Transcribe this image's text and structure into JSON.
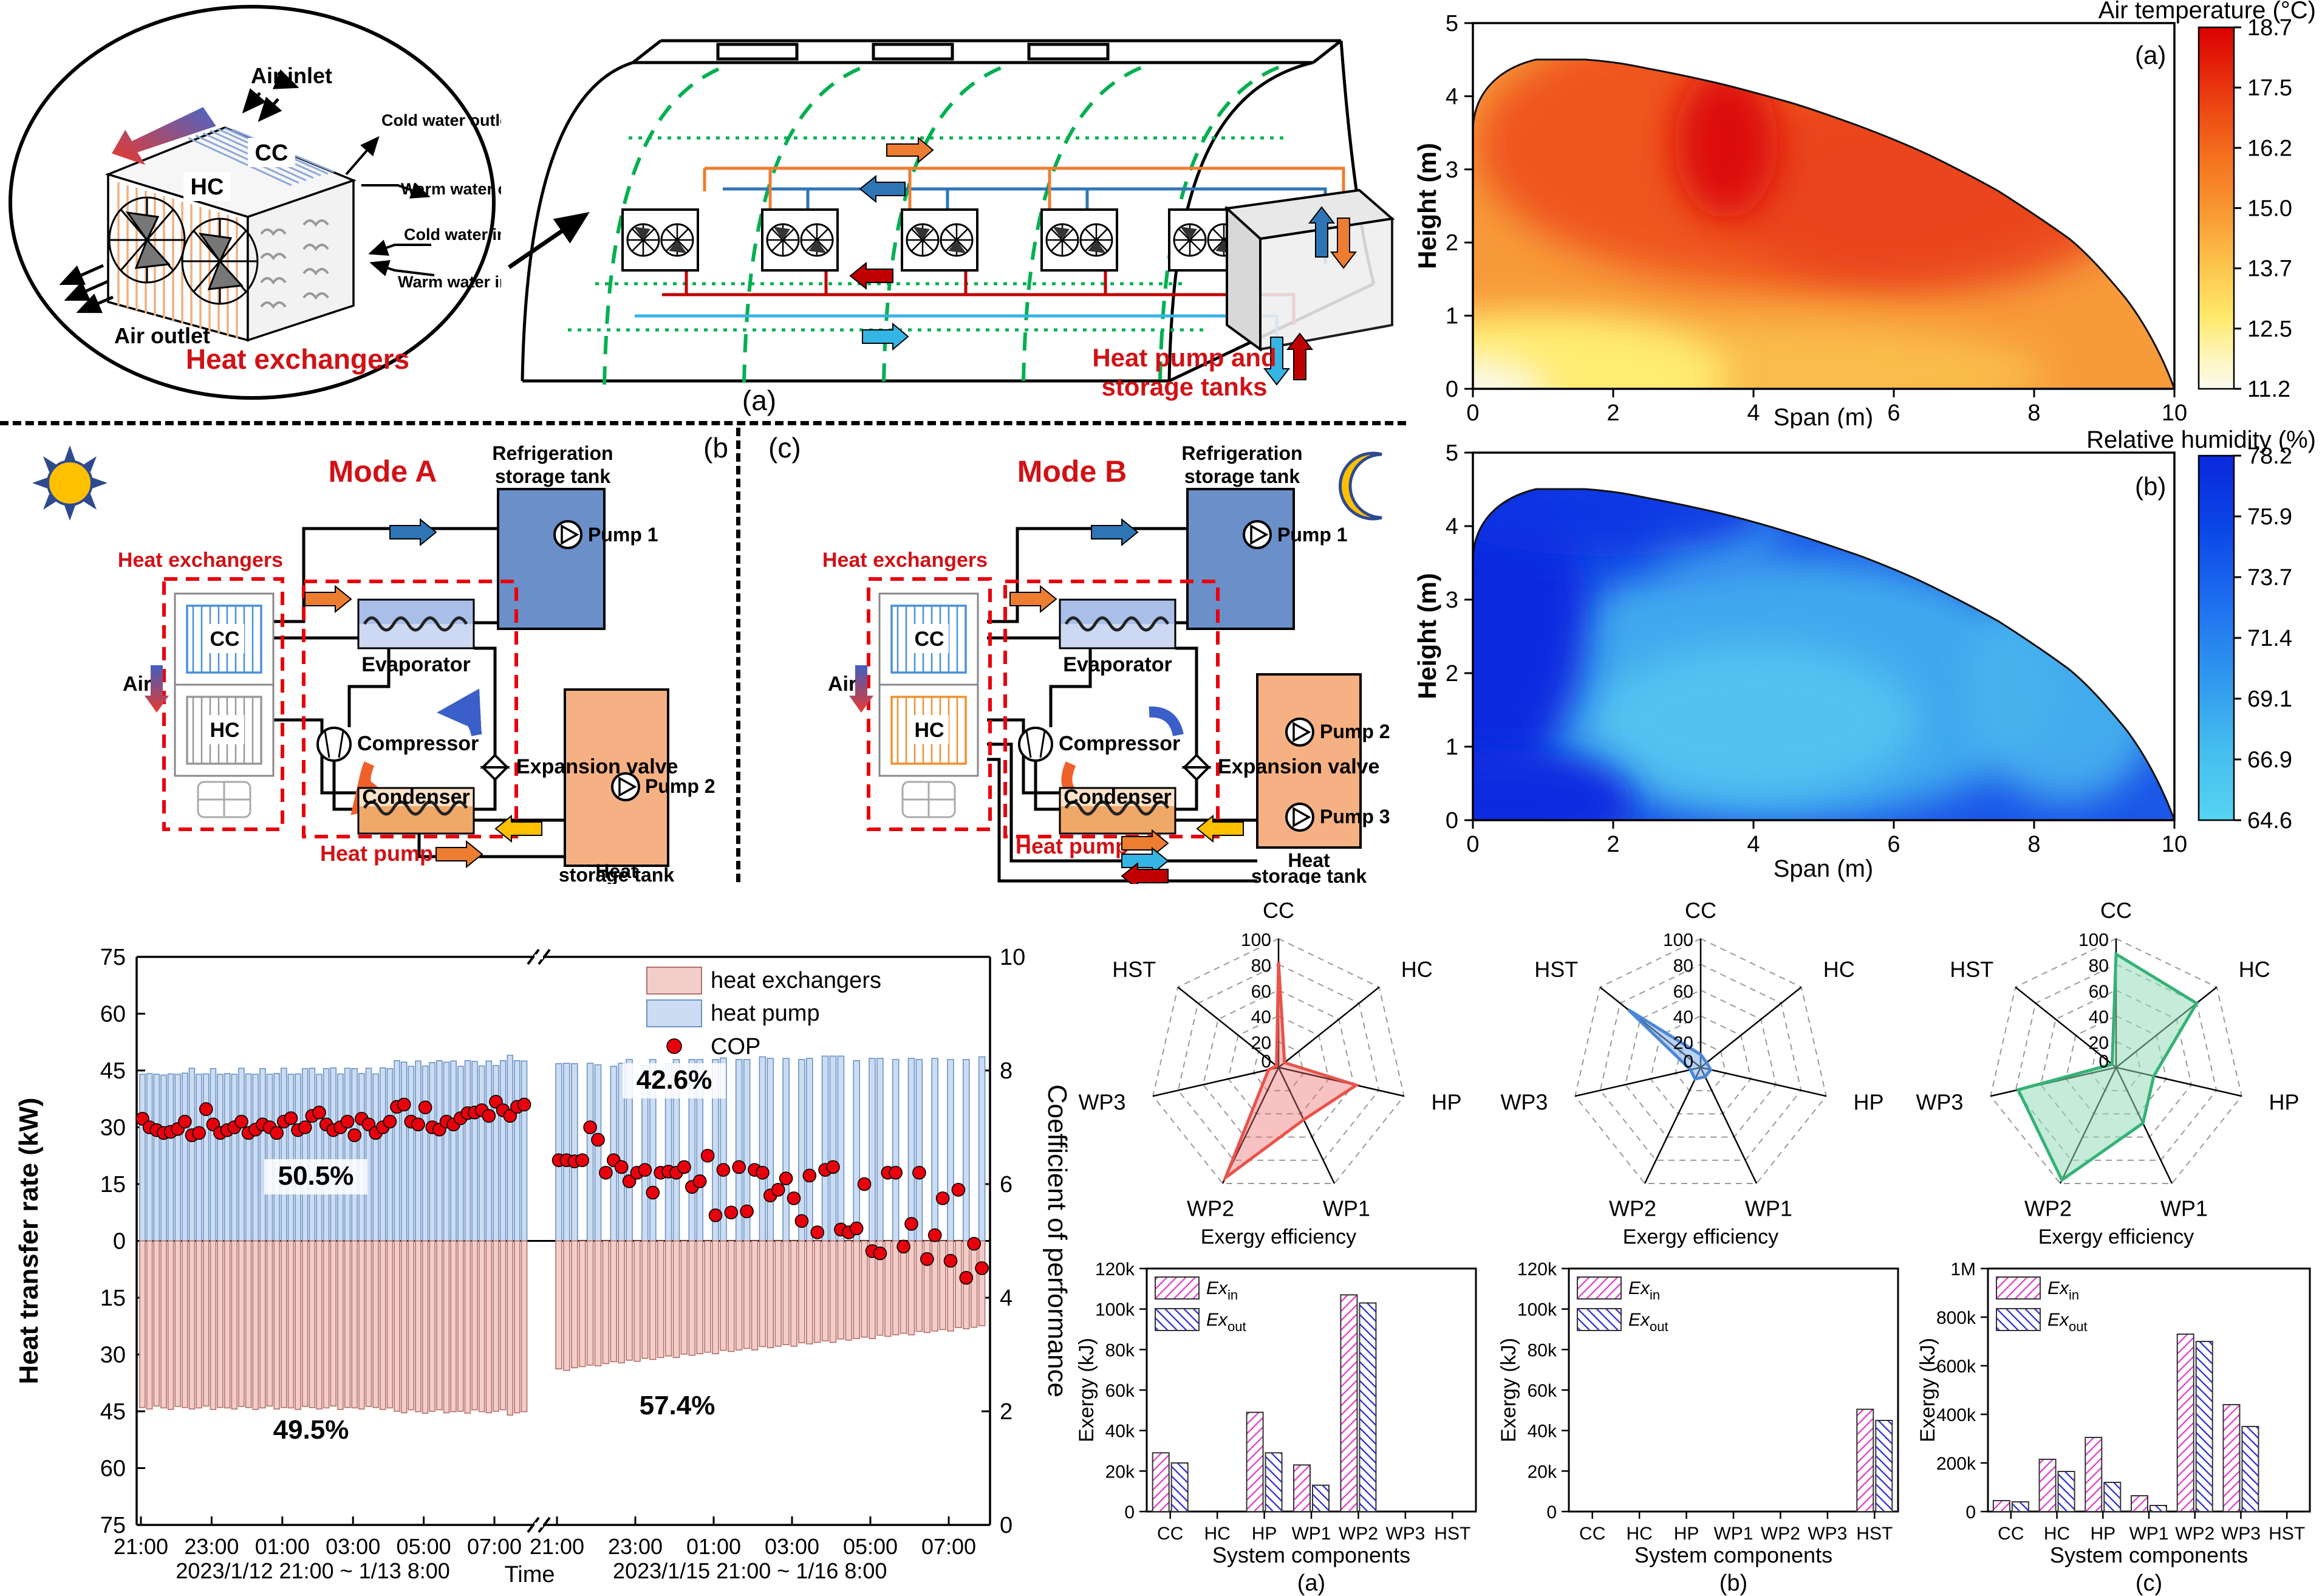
{
  "colors": {
    "red_accent": "#d01216",
    "cop_dot": "#e8000d",
    "bar_heat_pump_fill": "#ccdcf2",
    "bar_heat_pump_stroke": "#6b93c4",
    "bar_heat_exchangers_fill": "#f3cdc9",
    "bar_heat_exchangers_stroke": "#b4706b",
    "ex_in": "#e23cc8",
    "ex_out": "#2b2bd5",
    "radar_a": "#e8534a",
    "radar_b": "#4a86d8",
    "radar_c": "#35b276",
    "greenhouse_green": "#00b050",
    "tank_blue": "#6b8fc9",
    "tank_orange": "#f5b183"
  },
  "ellipse_panel": {
    "air_inlet": "Air inlet",
    "cc": "CC",
    "hc": "HC",
    "cold_water_outlet": "Cold water outlet",
    "warm_water_outlet": "Warm water outlet",
    "cold_water_inlet": "Cold water inlet",
    "warm_water_inlet": "Warm water inlet",
    "air_outlet": "Air outlet",
    "title": "Heat exchangers"
  },
  "greenhouse_panel": {
    "tank_line1": "Heat pump and",
    "tank_line2": "storage tanks",
    "caption": "(a)"
  },
  "modeA": {
    "panel_label": "(b)",
    "title": "Mode A",
    "heat_exchangers": "Heat exchangers",
    "cc": "CC",
    "hc": "HC",
    "air": "Air",
    "refrigeration_tank_1": "Refrigeration",
    "refrigeration_tank_2": "storage tank",
    "pump1": "Pump 1",
    "pump2": "Pump 2",
    "evaporator": "Evaporator",
    "compressor": "Compressor",
    "expansion_valve": "Expansion valve",
    "condenser": "Condenser",
    "heat_pump": "Heat pump",
    "heat_tank_1": "Heat",
    "heat_tank_2": "storage tank"
  },
  "modeB": {
    "panel_label": "(c)",
    "title": "Mode B",
    "heat_exchangers": "Heat exchangers",
    "cc": "CC",
    "hc": "HC",
    "air": "Air",
    "refrigeration_tank_1": "Refrigeration",
    "refrigeration_tank_2": "storage tank",
    "pump1": "Pump 1",
    "pump2": "Pump 2",
    "pump3": "Pump 3",
    "evaporator": "Evaporator",
    "compressor": "Compressor",
    "expansion_valve": "Expansion valve",
    "condenser": "Condenser",
    "heat_pump": "Heat pump",
    "heat_tank_1": "Heat",
    "heat_tank_2": "storage tank"
  },
  "chart_data": [
    {
      "id": "air_temperature_contour",
      "type": "heatmap",
      "title": "Air temperature (°C)",
      "panel_label": "(a)",
      "xlabel": "Span (m)",
      "ylabel": "Height (m)",
      "xlim": [
        0,
        10
      ],
      "ylim": [
        0,
        5
      ],
      "x_ticks": [
        0,
        2,
        4,
        6,
        8,
        10
      ],
      "y_ticks": [
        0,
        1,
        2,
        3,
        4,
        5
      ],
      "colorbar_ticks": [
        "18.7",
        "17.5",
        "16.2",
        "15.0",
        "13.7",
        "12.5",
        "11.2"
      ],
      "field_notes": "dome-shaped greenhouse section; hottest ~18.7C core near span 3.5-4 m height 3-3.5 m, warm red upper middle, orange elsewhere, coolest ~11.2C pale yellow at bottom-left corner"
    },
    {
      "id": "relative_humidity_contour",
      "type": "heatmap",
      "title": "Relative humidity (%)",
      "panel_label": "(b)",
      "xlabel": "Span (m)",
      "ylabel": "Height (m)",
      "xlim": [
        0,
        10
      ],
      "ylim": [
        0,
        5
      ],
      "x_ticks": [
        0,
        2,
        4,
        6,
        8,
        10
      ],
      "y_ticks": [
        0,
        1,
        2,
        3,
        4,
        5
      ],
      "colorbar_ticks": [
        "78.2",
        "75.9",
        "73.7",
        "71.4",
        "69.1",
        "66.9",
        "64.6"
      ],
      "field_notes": "dark blue ~78% along left and upper-left boundary, lighter cyan ~65-69% in central lower-right region"
    },
    {
      "id": "heat_transfer_cop",
      "type": "bar",
      "ylabel_left": "Heat transfer rate (kW)",
      "ylabel_right": "Coefficient of performance",
      "xlabel": "Time",
      "left_ticks": [
        "75",
        "60",
        "45",
        "30",
        "15",
        "0",
        "15",
        "30",
        "45",
        "60",
        "75"
      ],
      "right_ticks": [
        0,
        2,
        4,
        6,
        8,
        10
      ],
      "legend": [
        "heat exchangers",
        "heat pump",
        "COP"
      ],
      "segments": [
        {
          "date_label": "2023/1/12 21:00 ~ 1/13 8:00",
          "x_ticks": [
            "21:00",
            "23:00",
            "01:00",
            "03:00",
            "05:00",
            "07:00"
          ],
          "share_heat_pump": "50.5%",
          "share_heat_exchangers": "49.5%",
          "heat_pump": [
            44,
            44.2,
            44,
            43.8,
            44.1,
            44,
            44.3,
            45.6,
            44,
            44.1,
            45.5,
            44,
            44.2,
            44,
            45.6,
            44.1,
            44,
            45.5,
            44,
            44.2,
            45.6,
            44,
            44.1,
            45.5,
            45.6,
            44,
            45.5,
            45.7,
            44.1,
            45.6,
            45.5,
            44.2,
            45.6,
            44.1,
            45.7,
            45.5,
            47.6,
            47.2,
            46.1,
            47.5,
            46.2,
            47.1,
            47.6,
            47.2,
            47.5,
            46.1,
            47.6,
            47.4,
            46.2,
            47.5,
            46.3,
            47.6,
            49,
            47.6,
            47.5
          ],
          "heat_exchangers": [
            -44,
            -44.4,
            -43.6,
            -44.1,
            -44.5,
            -43.7,
            -44,
            -44.4,
            -44.1,
            -43.6,
            -44.5,
            -44,
            -44.1,
            -44.4,
            -43.7,
            -44,
            -44.5,
            -44.1,
            -43.6,
            -44.4,
            -44,
            -44.1,
            -44.5,
            -43.7,
            -44,
            -44.4,
            -44.1,
            -43.6,
            -44.5,
            -44,
            -44.1,
            -44.4,
            -43.7,
            -44,
            -44.5,
            -44.1,
            -45,
            -45.4,
            -44.6,
            -45.1,
            -45.5,
            -45,
            -44.6,
            -45.4,
            -45.1,
            -45,
            -45.5,
            -44.6,
            -45.1,
            -45.4,
            -45,
            -44.6,
            -46,
            -45.4,
            -45.1
          ],
          "cop": [
            7.15,
            7.0,
            6.95,
            6.9,
            6.92,
            6.97,
            7.1,
            6.86,
            6.9,
            7.32,
            7.05,
            6.9,
            6.95,
            7.0,
            7.1,
            6.9,
            6.96,
            7.05,
            7.0,
            6.9,
            7.1,
            7.16,
            6.95,
            7.0,
            7.2,
            7.26,
            7.05,
            6.95,
            7.0,
            7.1,
            6.86,
            7.15,
            7.05,
            6.9,
            7.0,
            7.1,
            7.36,
            7.4,
            7.1,
            7.05,
            7.35,
            7.0,
            6.96,
            7.1,
            7.05,
            7.16,
            7.25,
            7.26,
            7.3,
            7.2,
            7.45,
            7.3,
            7.2,
            7.36,
            7.4
          ]
        },
        {
          "date_label": "2023/1/15 21:00 ~ 1/16 8:00",
          "x_ticks": [
            "21:00",
            "23:00",
            "01:00",
            "03:00",
            "05:00",
            "07:00"
          ],
          "share_heat_pump": "42.6%",
          "share_heat_exchangers": "57.4%",
          "heat_pump": [
            46.8,
            46.9,
            46.8,
            null,
            46.9,
            46.5,
            null,
            46.1,
            46.9,
            47.9,
            null,
            46.3,
            47.9,
            null,
            46.8,
            47.9,
            null,
            47.9,
            47.9,
            null,
            47.9,
            48.3,
            null,
            47.9,
            47.9,
            null,
            48.6,
            48.2,
            null,
            48.2,
            null,
            47.9,
            48.2,
            null,
            48.8,
            48.8,
            48.8,
            null,
            47.6,
            null,
            48.2,
            48.2,
            null,
            47.9,
            null,
            48.2,
            47.9,
            null,
            48.2,
            null,
            47.9,
            null,
            47.9,
            null,
            48.6
          ],
          "heat_exchangers": [
            -33.8,
            -34.2,
            -33.5,
            -33.2,
            -32.8,
            -33,
            -32.4,
            -31.9,
            -32.2,
            -31.5,
            -31.8,
            -31,
            -31.3,
            -30.8,
            -30.4,
            -30.8,
            -29.9,
            -30.2,
            -29.8,
            -29.4,
            -29.8,
            -28.9,
            -29.2,
            -28.8,
            -28.4,
            -28.8,
            -27.9,
            -28.2,
            -27.8,
            -27.4,
            -27.8,
            -26.9,
            -27.2,
            -26.8,
            -26.4,
            -26.8,
            -25.9,
            -26.2,
            -25.8,
            -25.4,
            -25.8,
            -24.9,
            -25.2,
            -24.8,
            -24.4,
            -24.8,
            -23.9,
            -24.2,
            -23.8,
            -23.4,
            -23.8,
            -22.9,
            -23.2,
            -22.8,
            -22.4
          ],
          "cop": [
            6.42,
            6.42,
            6.4,
            6.42,
            7.0,
            6.78,
            6.2,
            6.42,
            6.3,
            6.05,
            6.2,
            6.25,
            5.85,
            6.2,
            6.22,
            6.2,
            6.3,
            5.95,
            6.05,
            6.5,
            5.45,
            6.25,
            5.5,
            6.3,
            5.52,
            6.25,
            6.2,
            5.8,
            5.9,
            6.1,
            5.75,
            5.35,
            6.15,
            5.15,
            6.25,
            6.3,
            5.2,
            5.15,
            5.22,
            6.0,
            4.82,
            4.78,
            6.2,
            6.2,
            4.9,
            5.3,
            6.2,
            4.68,
            5.1,
            5.75,
            4.65,
            5.9,
            4.35,
            4.95,
            4.52
          ]
        }
      ]
    },
    {
      "id": "radar_mode_a",
      "type": "radar",
      "axes": [
        "CC",
        "HC",
        "HP",
        "WP1",
        "WP2",
        "WP3",
        "HST"
      ],
      "ticks": [
        "0",
        "20",
        "40",
        "60",
        "80",
        "100"
      ],
      "values": [
        82,
        6,
        62,
        45,
        95,
        8,
        2
      ],
      "caption": "Exergy efficiency",
      "color": "#e8534a",
      "fill": "rgba(240,110,110,0.42)"
    },
    {
      "id": "radar_mode_b",
      "type": "radar",
      "axes": [
        "CC",
        "HC",
        "HP",
        "WP1",
        "WP2",
        "WP3",
        "HST"
      ],
      "ticks": [
        "0",
        "20",
        "40",
        "60",
        "80",
        "100"
      ],
      "values": [
        10,
        6,
        8,
        8,
        10,
        8,
        72
      ],
      "caption": "Exergy efficiency",
      "color": "#4a86d8",
      "fill": "rgba(130,175,235,0.55)"
    },
    {
      "id": "radar_mode_c",
      "type": "radar",
      "axes": [
        "CC",
        "HC",
        "HP",
        "WP1",
        "WP2",
        "WP3",
        "HST"
      ],
      "ticks": [
        "0",
        "20",
        "40",
        "60",
        "80",
        "100"
      ],
      "values": [
        88,
        80,
        30,
        48,
        97,
        78,
        4
      ],
      "caption": "Exergy efficiency",
      "color": "#35b276",
      "fill": "rgba(150,220,185,0.55)"
    },
    {
      "id": "exergy_bars_a",
      "type": "bar",
      "categories": [
        "CC",
        "HC",
        "HP",
        "WP1",
        "WP2",
        "WP3",
        "HST"
      ],
      "series": [
        {
          "name_base": "Ex",
          "name_sub": "in",
          "values": [
            29000,
            0,
            49000,
            23000,
            107000,
            0,
            0
          ]
        },
        {
          "name_base": "Ex",
          "name_sub": "out",
          "values": [
            24000,
            0,
            29000,
            13000,
            103000,
            0,
            0
          ]
        }
      ],
      "ylabel": "Exergy (kJ)",
      "xlabel": "System components",
      "panel_label": "(a)",
      "ymax": 120000,
      "y_ticks": [
        "0",
        "20k",
        "40k",
        "60k",
        "80k",
        "100k",
        "120k"
      ],
      "y_tick_values": [
        0,
        20000,
        40000,
        60000,
        80000,
        100000,
        120000
      ]
    },
    {
      "id": "exergy_bars_b",
      "type": "bar",
      "categories": [
        "CC",
        "HC",
        "HP",
        "WP1",
        "WP2",
        "WP3",
        "HST"
      ],
      "series": [
        {
          "name_base": "Ex",
          "name_sub": "in",
          "values": [
            0,
            0,
            0,
            0,
            0,
            0,
            50500
          ]
        },
        {
          "name_base": "Ex",
          "name_sub": "out",
          "values": [
            0,
            0,
            0,
            0,
            0,
            0,
            45000
          ]
        }
      ],
      "ylabel": "Exergy (kJ)",
      "xlabel": "System components",
      "panel_label": "(b)",
      "ymax": 120000,
      "y_ticks": [
        "0",
        "20k",
        "40k",
        "60k",
        "80k",
        "100k",
        "120k"
      ],
      "y_tick_values": [
        0,
        20000,
        40000,
        60000,
        80000,
        100000,
        120000
      ]
    },
    {
      "id": "exergy_bars_c",
      "type": "bar",
      "categories": [
        "CC",
        "HC",
        "HP",
        "WP1",
        "WP2",
        "WP3",
        "HST"
      ],
      "series": [
        {
          "name_base": "Ex",
          "name_sub": "in",
          "values": [
            45000,
            215000,
            305000,
            65000,
            730000,
            440000,
            0
          ]
        },
        {
          "name_base": "Ex",
          "name_sub": "out",
          "values": [
            40000,
            165000,
            120000,
            25000,
            700000,
            350000,
            0
          ]
        }
      ],
      "ylabel": "Exergy (kJ)",
      "xlabel": "System components",
      "panel_label": "(c)",
      "ymax": 1000000,
      "y_ticks": [
        "0",
        "200k",
        "400k",
        "600k",
        "800k",
        "1M"
      ],
      "y_tick_values": [
        0,
        200000,
        400000,
        600000,
        800000,
        1000000
      ]
    }
  ]
}
